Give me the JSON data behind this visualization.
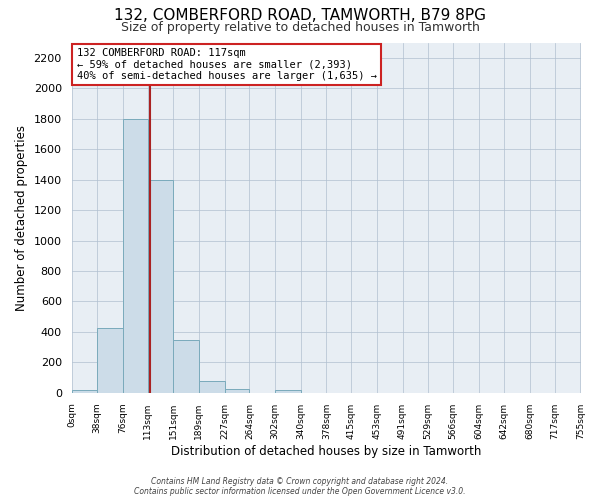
{
  "title": "132, COMBERFORD ROAD, TAMWORTH, B79 8PG",
  "subtitle": "Size of property relative to detached houses in Tamworth",
  "xlabel": "Distribution of detached houses by size in Tamworth",
  "ylabel": "Number of detached properties",
  "bin_edges": [
    0,
    38,
    76,
    113,
    151,
    189,
    227,
    264,
    302,
    340,
    378,
    415,
    453,
    491,
    529,
    566,
    604,
    642,
    680,
    717,
    755
  ],
  "bin_counts": [
    20,
    425,
    1800,
    1400,
    350,
    75,
    25,
    0,
    20,
    0,
    0,
    0,
    0,
    0,
    0,
    0,
    0,
    0,
    0,
    0
  ],
  "bar_color": "#ccdce8",
  "bar_edgecolor": "#7aaabb",
  "property_size": 117,
  "vline_color": "#aa2222",
  "ylim": [
    0,
    2300
  ],
  "yticks": [
    0,
    200,
    400,
    600,
    800,
    1000,
    1200,
    1400,
    1600,
    1800,
    2000,
    2200
  ],
  "xtick_labels": [
    "0sqm",
    "38sqm",
    "76sqm",
    "113sqm",
    "151sqm",
    "189sqm",
    "227sqm",
    "264sqm",
    "302sqm",
    "340sqm",
    "378sqm",
    "415sqm",
    "453sqm",
    "491sqm",
    "529sqm",
    "566sqm",
    "604sqm",
    "642sqm",
    "680sqm",
    "717sqm",
    "755sqm"
  ],
  "annotation_title": "132 COMBERFORD ROAD: 117sqm",
  "annotation_line2": "← 59% of detached houses are smaller (2,393)",
  "annotation_line3": "40% of semi-detached houses are larger (1,635) →",
  "annotation_box_color": "#ffffff",
  "annotation_box_edgecolor": "#cc2222",
  "footer_line1": "Contains HM Land Registry data © Crown copyright and database right 2024.",
  "footer_line2": "Contains public sector information licensed under the Open Government Licence v3.0.",
  "background_color": "#ffffff",
  "plot_bg_color": "#e8eef4",
  "grid_color": "#b0c0d0",
  "title_fontsize": 11,
  "subtitle_fontsize": 9
}
